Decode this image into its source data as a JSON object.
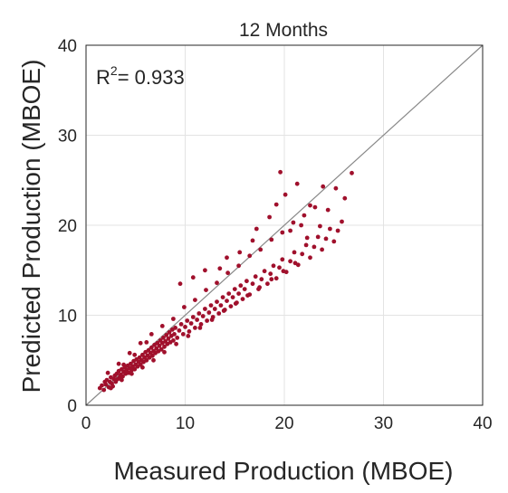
{
  "chart_data": {
    "type": "scatter",
    "title": "12 Months",
    "xlabel": "Measured Production (MBOE)",
    "ylabel": "Predicted Production (MBOE)",
    "xlim": [
      0,
      40
    ],
    "ylim": [
      0,
      40
    ],
    "xticks": [
      0,
      10,
      20,
      30,
      40
    ],
    "yticks": [
      0,
      10,
      20,
      30,
      40
    ],
    "grid": true,
    "annotation": {
      "base": "R",
      "sup": "2",
      "rest": "= 0.933"
    },
    "reference_line": {
      "x": [
        0,
        40
      ],
      "y": [
        0,
        40
      ],
      "color": "#888888"
    },
    "series": [
      {
        "color": "#a0102c",
        "points": [
          [
            1.4,
            1.9
          ],
          [
            1.6,
            2.2
          ],
          [
            1.8,
            1.7
          ],
          [
            2.0,
            2.3
          ],
          [
            2.1,
            2.8
          ],
          [
            2.3,
            2.0
          ],
          [
            2.4,
            2.6
          ],
          [
            2.5,
            3.1
          ],
          [
            2.6,
            2.4
          ],
          [
            2.8,
            2.9
          ],
          [
            2.9,
            3.3
          ],
          [
            3.0,
            2.6
          ],
          [
            3.1,
            3.5
          ],
          [
            3.2,
            2.9
          ],
          [
            3.3,
            3.8
          ],
          [
            3.4,
            3.1
          ],
          [
            3.5,
            3.4
          ],
          [
            3.6,
            4.0
          ],
          [
            3.7,
            3.2
          ],
          [
            3.8,
            3.7
          ],
          [
            3.9,
            4.2
          ],
          [
            4.0,
            3.5
          ],
          [
            4.1,
            3.9
          ],
          [
            4.2,
            4.4
          ],
          [
            4.3,
            3.6
          ],
          [
            4.4,
            4.1
          ],
          [
            4.5,
            4.6
          ],
          [
            4.6,
            3.9
          ],
          [
            4.7,
            4.3
          ],
          [
            4.8,
            4.9
          ],
          [
            4.9,
            4.0
          ],
          [
            5.0,
            4.5
          ],
          [
            5.1,
            5.1
          ],
          [
            5.2,
            4.3
          ],
          [
            5.3,
            4.8
          ],
          [
            5.4,
            5.3
          ],
          [
            5.5,
            4.5
          ],
          [
            5.6,
            5.0
          ],
          [
            5.7,
            5.6
          ],
          [
            5.8,
            4.8
          ],
          [
            5.9,
            5.3
          ],
          [
            6.0,
            5.9
          ],
          [
            6.1,
            5.0
          ],
          [
            6.2,
            5.5
          ],
          [
            6.3,
            6.1
          ],
          [
            6.4,
            5.3
          ],
          [
            6.5,
            5.8
          ],
          [
            6.6,
            6.4
          ],
          [
            6.7,
            5.5
          ],
          [
            6.8,
            6.0
          ],
          [
            6.9,
            6.7
          ],
          [
            7.0,
            5.8
          ],
          [
            7.1,
            6.3
          ],
          [
            7.2,
            6.9
          ],
          [
            7.3,
            6.0
          ],
          [
            7.4,
            6.6
          ],
          [
            7.5,
            7.2
          ],
          [
            7.6,
            6.2
          ],
          [
            7.7,
            6.9
          ],
          [
            7.8,
            7.5
          ],
          [
            7.9,
            6.5
          ],
          [
            8.0,
            7.1
          ],
          [
            8.1,
            7.8
          ],
          [
            8.2,
            6.8
          ],
          [
            8.3,
            7.4
          ],
          [
            8.4,
            8.1
          ],
          [
            8.5,
            7.0
          ],
          [
            8.6,
            7.7
          ],
          [
            8.7,
            8.4
          ],
          [
            8.8,
            7.2
          ],
          [
            8.9,
            7.9
          ],
          [
            9.0,
            8.6
          ],
          [
            9.2,
            7.5
          ],
          [
            9.4,
            8.3
          ],
          [
            9.6,
            9.0
          ],
          [
            9.8,
            7.9
          ],
          [
            10.0,
            8.7
          ],
          [
            10.2,
            9.4
          ],
          [
            10.4,
            8.2
          ],
          [
            10.6,
            9.1
          ],
          [
            10.8,
            9.8
          ],
          [
            11.0,
            8.6
          ],
          [
            11.2,
            9.5
          ],
          [
            11.4,
            10.2
          ],
          [
            11.6,
            9.0
          ],
          [
            11.8,
            9.9
          ],
          [
            12.0,
            10.7
          ],
          [
            12.2,
            9.4
          ],
          [
            12.4,
            10.3
          ],
          [
            12.6,
            11.1
          ],
          [
            12.8,
            9.8
          ],
          [
            13.0,
            10.7
          ],
          [
            13.2,
            11.5
          ],
          [
            13.4,
            10.2
          ],
          [
            13.6,
            11.1
          ],
          [
            13.8,
            12.0
          ],
          [
            14.0,
            10.6
          ],
          [
            14.2,
            11.6
          ],
          [
            14.4,
            12.4
          ],
          [
            14.6,
            11.0
          ],
          [
            14.8,
            12.0
          ],
          [
            15.0,
            12.9
          ],
          [
            15.2,
            11.4
          ],
          [
            15.4,
            12.4
          ],
          [
            15.6,
            13.3
          ],
          [
            15.8,
            11.8
          ],
          [
            16.0,
            12.9
          ],
          [
            16.2,
            13.8
          ],
          [
            16.5,
            12.3
          ],
          [
            16.8,
            13.5
          ],
          [
            17.1,
            14.3
          ],
          [
            17.4,
            12.9
          ],
          [
            17.7,
            14.0
          ],
          [
            18.0,
            14.9
          ],
          [
            18.3,
            13.5
          ],
          [
            18.6,
            14.6
          ],
          [
            18.9,
            15.5
          ],
          [
            19.2,
            14.1
          ],
          [
            19.5,
            15.3
          ],
          [
            19.8,
            16.2
          ],
          [
            20.2,
            14.8
          ],
          [
            20.6,
            16.0
          ],
          [
            21.0,
            17.0
          ],
          [
            21.4,
            15.6
          ],
          [
            21.8,
            16.8
          ],
          [
            22.2,
            17.8
          ],
          [
            22.6,
            16.4
          ],
          [
            23.0,
            17.6
          ],
          [
            23.4,
            18.7
          ],
          [
            23.8,
            17.3
          ],
          [
            24.2,
            18.5
          ],
          [
            24.6,
            19.6
          ],
          [
            25.0,
            18.2
          ],
          [
            25.4,
            19.4
          ],
          [
            25.8,
            20.4
          ],
          [
            2.2,
            3.6
          ],
          [
            3.3,
            4.6
          ],
          [
            4.4,
            5.8
          ],
          [
            5.5,
            6.9
          ],
          [
            6.6,
            7.9
          ],
          [
            7.7,
            8.8
          ],
          [
            8.8,
            9.6
          ],
          [
            9.9,
            10.9
          ],
          [
            11.0,
            11.7
          ],
          [
            12.1,
            12.8
          ],
          [
            13.2,
            13.6
          ],
          [
            14.3,
            14.7
          ],
          [
            15.4,
            15.5
          ],
          [
            16.5,
            16.6
          ],
          [
            17.6,
            17.3
          ],
          [
            18.7,
            18.4
          ],
          [
            19.8,
            19.2
          ],
          [
            20.9,
            20.3
          ],
          [
            22.0,
            21.1
          ],
          [
            23.1,
            22.0
          ],
          [
            9.5,
            13.5
          ],
          [
            10.8,
            14.2
          ],
          [
            12.0,
            15.0
          ],
          [
            13.5,
            15.2
          ],
          [
            14.2,
            16.4
          ],
          [
            15.5,
            17.0
          ],
          [
            16.8,
            18.3
          ],
          [
            17.2,
            19.6
          ],
          [
            18.5,
            20.9
          ],
          [
            19.2,
            22.3
          ],
          [
            19.6,
            25.9
          ],
          [
            20.1,
            23.4
          ],
          [
            21.3,
            24.6
          ],
          [
            22.6,
            22.2
          ],
          [
            23.9,
            24.3
          ],
          [
            25.2,
            24.1
          ],
          [
            26.1,
            23.0
          ],
          [
            26.8,
            25.8
          ],
          [
            24.4,
            21.7
          ],
          [
            21.7,
            20.0
          ],
          [
            20.6,
            19.4
          ],
          [
            22.3,
            18.6
          ],
          [
            23.6,
            19.9
          ],
          [
            2.7,
            2.1
          ],
          [
            3.6,
            2.8
          ],
          [
            4.6,
            3.5
          ],
          [
            5.7,
            4.2
          ],
          [
            6.8,
            5.0
          ],
          [
            7.9,
            5.9
          ],
          [
            9.1,
            6.8
          ],
          [
            10.3,
            7.7
          ],
          [
            11.5,
            8.6
          ],
          [
            12.7,
            9.5
          ],
          [
            13.9,
            10.5
          ],
          [
            15.1,
            11.3
          ],
          [
            16.3,
            12.2
          ],
          [
            17.5,
            13.1
          ],
          [
            18.7,
            14.0
          ],
          [
            19.9,
            14.9
          ],
          [
            21.1,
            15.8
          ],
          [
            1.9,
            2.6
          ],
          [
            2.5,
            1.9
          ],
          [
            3.8,
            4.5
          ],
          [
            4.9,
            5.6
          ],
          [
            6.1,
            7.0
          ]
        ]
      }
    ]
  }
}
